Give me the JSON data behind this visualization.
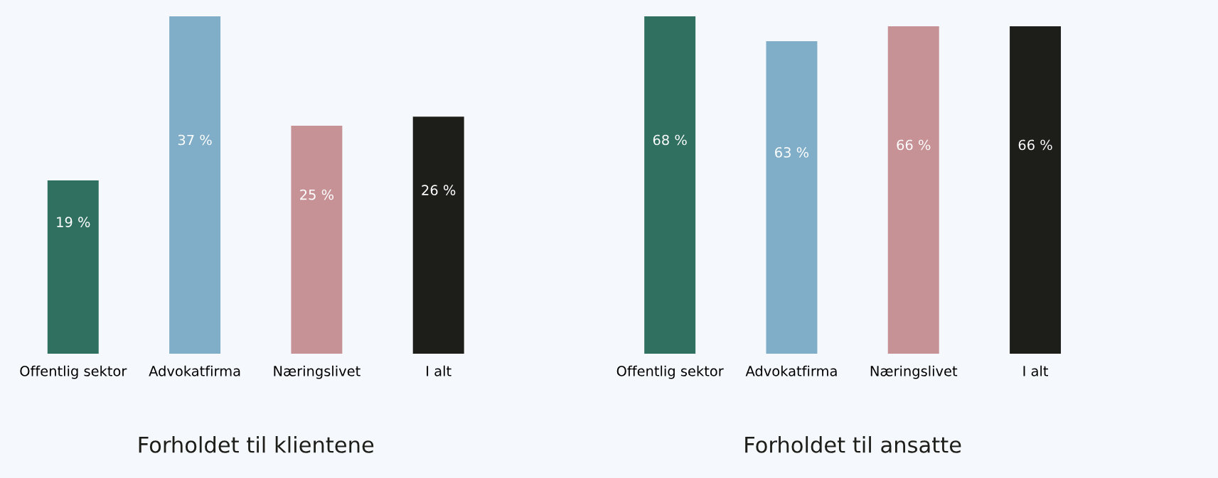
{
  "chart_data": [
    {
      "type": "bar",
      "title": "Forholdet til klientene",
      "categories": [
        "Offentlig sektor",
        "Advokatfirma",
        "Næringslivet",
        "I alt"
      ],
      "values": [
        19,
        37,
        25,
        26
      ],
      "colors": [
        "#2f7060",
        "#80aec8",
        "#c79296",
        "#1d1e1a"
      ],
      "value_labels": [
        "19 %",
        "37 %",
        "25 %",
        "26 %"
      ],
      "grid": false,
      "legend": false
    },
    {
      "type": "bar",
      "title": "Forholdet til ansatte",
      "categories": [
        "Offentlig sektor",
        "Advokatfirma",
        "Næringslivet",
        "I alt"
      ],
      "values": [
        68,
        63,
        66,
        66
      ],
      "colors": [
        "#2f7060",
        "#80aec8",
        "#c79296",
        "#1d1e1a"
      ],
      "value_labels": [
        "68 %",
        "63 %",
        "66 %",
        "66 %"
      ],
      "grid": false,
      "legend": false
    }
  ]
}
